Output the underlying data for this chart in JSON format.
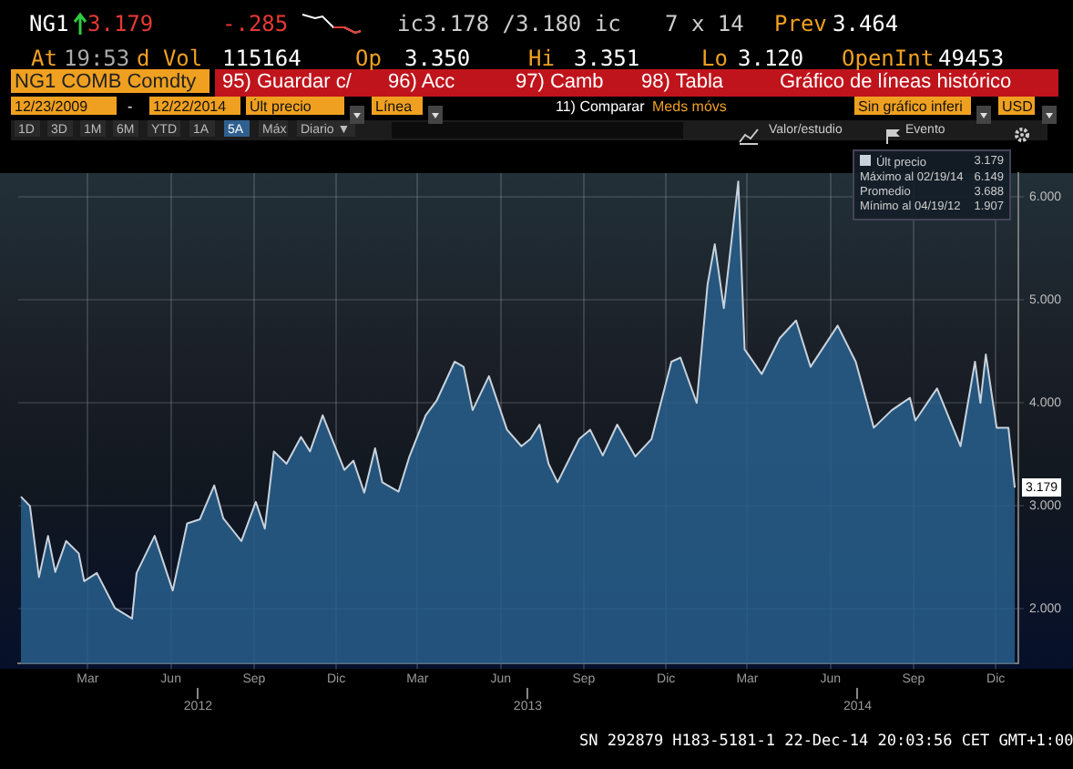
{
  "chart_data": {
    "type": "area",
    "title": "Gráfico de líneas histórico",
    "series": [
      {
        "name": "Últ precio",
        "color": "#c8d2dc",
        "x": [
          "2011-12-18",
          "2011-12-28",
          "2012-01-07",
          "2012-01-17",
          "2012-01-25",
          "2012-02-06",
          "2012-02-20",
          "2012-02-26",
          "2012-03-11",
          "2012-03-31",
          "2012-04-19",
          "2012-04-24",
          "2012-05-14",
          "2012-06-03",
          "2012-06-19",
          "2012-07-03",
          "2012-07-19",
          "2012-07-29",
          "2012-08-18",
          "2012-09-03",
          "2012-09-13",
          "2012-09-23",
          "2012-10-07",
          "2012-10-23",
          "2012-11-02",
          "2012-11-16",
          "2012-12-10",
          "2012-12-20",
          "2013-01-01",
          "2013-01-13",
          "2013-01-21",
          "2013-02-08",
          "2013-02-20",
          "2013-03-10",
          "2013-03-22",
          "2013-04-11",
          "2013-04-21",
          "2013-05-01",
          "2013-05-19",
          "2013-06-08",
          "2013-06-24",
          "2013-07-04",
          "2013-07-14",
          "2013-07-24",
          "2013-08-03",
          "2013-08-27",
          "2013-09-08",
          "2013-09-22",
          "2013-10-08",
          "2013-10-28",
          "2013-11-15",
          "2013-12-07",
          "2013-12-17",
          "2014-01-04",
          "2014-01-16",
          "2014-01-24",
          "2014-02-03",
          "2014-02-19",
          "2014-02-26",
          "2014-03-17",
          "2014-04-06",
          "2014-04-24",
          "2014-05-10",
          "2014-06-09",
          "2014-06-29",
          "2014-07-19",
          "2014-08-08",
          "2014-08-28",
          "2014-09-03",
          "2014-09-27",
          "2014-10-23",
          "2014-11-08",
          "2014-11-14",
          "2014-11-20",
          "2014-12-02",
          "2014-12-15",
          "2014-12-22"
        ],
        "values": [
          3.09,
          3.0,
          2.31,
          2.71,
          2.36,
          2.66,
          2.54,
          2.27,
          2.35,
          2.01,
          1.907,
          2.35,
          2.71,
          2.18,
          2.83,
          2.87,
          3.2,
          2.88,
          2.66,
          3.04,
          2.78,
          3.53,
          3.41,
          3.67,
          3.53,
          3.88,
          3.35,
          3.44,
          3.13,
          3.56,
          3.23,
          3.14,
          3.48,
          3.88,
          4.02,
          4.4,
          4.35,
          3.93,
          4.26,
          3.74,
          3.58,
          3.65,
          3.79,
          3.41,
          3.23,
          3.65,
          3.74,
          3.49,
          3.79,
          3.48,
          3.65,
          4.4,
          4.44,
          4.0,
          5.15,
          5.54,
          4.92,
          6.149,
          4.52,
          4.28,
          4.63,
          4.8,
          4.35,
          4.75,
          4.4,
          3.76,
          3.93,
          4.05,
          3.83,
          4.14,
          3.58,
          4.4,
          4.0,
          4.47,
          3.76,
          3.76,
          3.179
        ]
      }
    ],
    "xlim": [
      "2011-12-15",
      "2014-12-26"
    ],
    "xticks": [
      {
        "value": "2012-03-01",
        "label": "Mar"
      },
      {
        "value": "2012-06-01",
        "label": "Jun"
      },
      {
        "value": "2012-09-01",
        "label": "Sep"
      },
      {
        "value": "2012-12-01",
        "label": "Dic"
      },
      {
        "value": "2013-03-01",
        "label": "Mar"
      },
      {
        "value": "2013-06-01",
        "label": "Jun"
      },
      {
        "value": "2013-09-01",
        "label": "Sep"
      },
      {
        "value": "2013-12-01",
        "label": "Dic"
      },
      {
        "value": "2014-03-01",
        "label": "Mar"
      },
      {
        "value": "2014-06-01",
        "label": "Jun"
      },
      {
        "value": "2014-09-01",
        "label": "Sep"
      },
      {
        "value": "2014-12-01",
        "label": "Dic"
      }
    ],
    "x2lim": [
      "2011-12-15",
      "2014-12-26"
    ],
    "x2ticks": [
      {
        "value": "2012-07-01",
        "label": "2012"
      },
      {
        "value": "2013-07-01",
        "label": "2013"
      },
      {
        "value": "2014-07-01",
        "label": "2014"
      }
    ],
    "ylim": [
      1.47,
      6.23
    ],
    "yticks": [
      {
        "value": 2,
        "label": "2.000"
      },
      {
        "value": 3,
        "label": "3.000"
      },
      {
        "value": 4,
        "label": "4.000"
      },
      {
        "value": 5,
        "label": "5.000"
      },
      {
        "value": 6,
        "label": "6.000"
      }
    ],
    "grid": true,
    "legend": "top right",
    "marker": "none",
    "line_style": "solid",
    "annotations": [
      "NG1",
      "3.179",
      "-.285",
      "ic3.178 /3.180 ic",
      "7 x 14",
      "Prev",
      "3.464",
      "At",
      "19:53",
      "d Vol",
      "115164",
      "Op",
      "3.350",
      "Hi",
      "3.351",
      "Lo",
      "3.120",
      "OpenInt",
      "49453",
      "NG1 COMB Comdty",
      "95) Guardar c/",
      "96) Acc",
      "97) Camb",
      "98) Tabla",
      "12/23/2009",
      "-",
      "12/22/2014",
      "Últ precio",
      "Línea",
      "11) Comparar",
      "Meds móvs",
      "Sin gráfico inferi",
      "USD",
      "1D",
      "3D",
      "1M",
      "6M",
      "YTD",
      "1A",
      "5A",
      "Máx",
      "Diario ▼",
      "Valor/estudio",
      "Evento",
      {
        "text": "3.179",
        "x": "2014-12-22",
        "y": 3.179
      },
      "Máximo al 02/19/14 6.149",
      "Promedio 3.688",
      "Mínimo al 04/19/12 1.907",
      "SN 292879 H183-5181-1 22-Dec-14 20:03:56 CET GMT+1:00"
    ]
  }
}
